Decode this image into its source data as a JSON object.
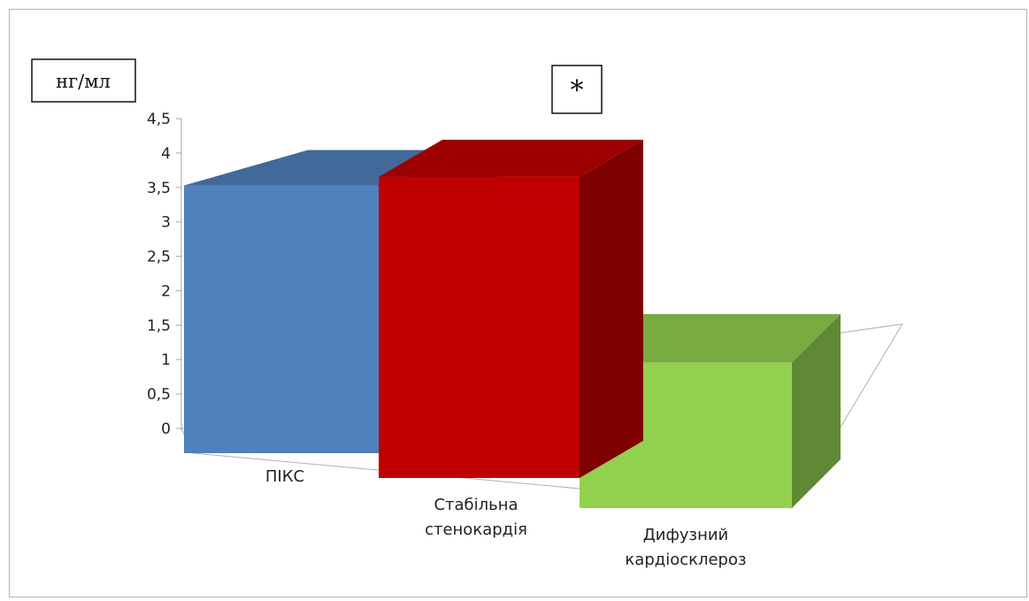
{
  "chart_data": {
    "type": "bar",
    "style": "3d-column",
    "categories": [
      [
        "ПІКС"
      ],
      [
        "Стабільна",
        "стенокардія"
      ],
      [
        "Дифузний",
        "кардіосклероз"
      ]
    ],
    "values": [
      3.7,
      3.9,
      1.75
    ],
    "colors": [
      "#4f81bd",
      "#c00000",
      "#92d050"
    ],
    "ylim": [
      0,
      4.5
    ],
    "yticks": [
      "0",
      "0,5",
      "1",
      "1,5",
      "2",
      "2,5",
      "3",
      "3,5",
      "4",
      "4,5"
    ],
    "unit_label": "нг/мл",
    "significance_marker": "*",
    "grid": false,
    "legend": "none"
  }
}
